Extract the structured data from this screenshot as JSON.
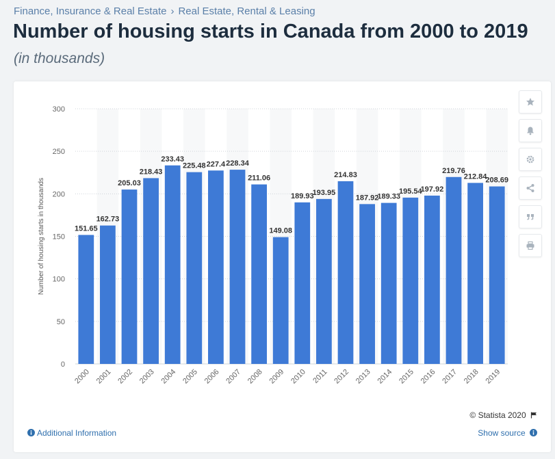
{
  "breadcrumb": {
    "items": [
      "Finance, Insurance & Real Estate",
      "Real Estate, Rental & Leasing"
    ],
    "separator": "›"
  },
  "title": "Number of housing starts in Canada from 2000 to 2019",
  "subtitle": "(in thousands)",
  "side_buttons": [
    {
      "icon": "star-icon"
    },
    {
      "icon": "bell-icon"
    },
    {
      "icon": "gear-icon"
    },
    {
      "icon": "share-icon"
    },
    {
      "icon": "quote-icon"
    },
    {
      "icon": "print-icon"
    }
  ],
  "credit": "© Statista 2020",
  "footer": {
    "info_label": "Additional Information",
    "source_label": "Show source"
  },
  "colors": {
    "bar": "#3e7ad6",
    "accent_link": "#2f6fad",
    "title": "#1d2d3e"
  },
  "chart_data": {
    "type": "bar",
    "title": "Number of housing starts in Canada from 2000 to 2019",
    "xlabel": "",
    "ylabel": "Number of housing starts in thousands",
    "ylim": [
      0,
      300
    ],
    "yticks": [
      0,
      50,
      100,
      150,
      200,
      250,
      300
    ],
    "grid": true,
    "categories": [
      "2000",
      "2001",
      "2002",
      "2003",
      "2004",
      "2005",
      "2006",
      "2007",
      "2008",
      "2009",
      "2010",
      "2011",
      "2012",
      "2013",
      "2014",
      "2015",
      "2016",
      "2017",
      "2018",
      "2019"
    ],
    "values": [
      151.65,
      162.73,
      205.03,
      218.43,
      233.43,
      225.48,
      227.4,
      228.34,
      211.06,
      149.08,
      189.93,
      193.95,
      214.83,
      187.92,
      189.33,
      195.54,
      197.92,
      219.76,
      212.84,
      208.69
    ],
    "labels": [
      "151.65",
      "162.73",
      "205.03",
      "218.43",
      "233.43",
      "225.48",
      "227.4",
      "228.34",
      "211.06",
      "149.08",
      "189.93",
      "193.95",
      "214.83",
      "187.92",
      "189.33",
      "195.54",
      "197.92",
      "219.76",
      "212.84",
      "208.69"
    ]
  }
}
